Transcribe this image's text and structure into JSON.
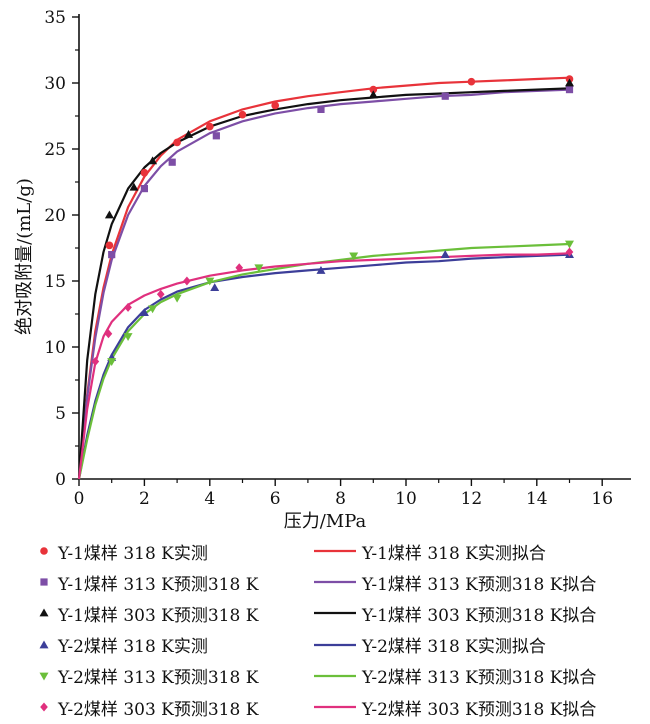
{
  "chart_data": {
    "type": "scatter",
    "xlabel": "压力/MPa",
    "ylabel": "绝对吸附量/(mL/g)",
    "xlim": [
      0,
      16
    ],
    "ylim": [
      0,
      35
    ],
    "xticks": [
      "0",
      "2",
      "4",
      "6",
      "8",
      "10",
      "12",
      "14",
      "16"
    ],
    "yticks": [
      "0",
      "5",
      "10",
      "15",
      "20",
      "25",
      "30",
      "35"
    ],
    "grid": false,
    "legend_position": "bottom",
    "series": [
      {
        "name": "Y-1煤样 318 K实测",
        "kind": "points",
        "marker": "circle",
        "color": "#e8333a",
        "x": [
          0.93,
          2.0,
          3.0,
          4.0,
          5.0,
          6.0,
          9.0,
          12.0,
          15.0
        ],
        "y": [
          17.7,
          23.2,
          25.5,
          26.7,
          27.6,
          28.3,
          29.5,
          30.1,
          30.3
        ]
      },
      {
        "name": "Y-1煤样 313 K预测318 K",
        "kind": "points",
        "marker": "square",
        "color": "#7d4ea6",
        "x": [
          1.0,
          2.0,
          2.85,
          4.2,
          7.4,
          11.2,
          15.0
        ],
        "y": [
          17.0,
          22.0,
          24.0,
          26.0,
          28.0,
          29.0,
          29.5
        ]
      },
      {
        "name": "Y-1煤样 303 K预测318 K",
        "kind": "points",
        "marker": "triangle-up",
        "color": "#111111",
        "x": [
          0.93,
          1.68,
          2.25,
          3.35,
          9.0,
          15.0
        ],
        "y": [
          20.0,
          22.1,
          24.1,
          26.1,
          29.1,
          30.0
        ]
      },
      {
        "name": "Y-2煤样 318 K实测",
        "kind": "points",
        "marker": "triangle-up",
        "color": "#3c3e99",
        "x": [
          1.0,
          2.0,
          4.15,
          7.4,
          11.2,
          15.0
        ],
        "y": [
          9.2,
          12.6,
          14.5,
          15.8,
          17.0,
          17.0
        ]
      },
      {
        "name": "Y-2煤样 313 K预测318 K",
        "kind": "points",
        "marker": "triangle-down",
        "color": "#6bbf3a",
        "x": [
          1.0,
          1.5,
          2.25,
          3.0,
          4.0,
          5.5,
          8.4,
          15.0
        ],
        "y": [
          8.9,
          10.8,
          12.9,
          13.7,
          15.0,
          16.0,
          16.9,
          17.8
        ]
      },
      {
        "name": "Y-2煤样 303 K预测318 K",
        "kind": "points",
        "marker": "diamond",
        "color": "#e0307e",
        "x": [
          0.5,
          0.9,
          1.5,
          2.5,
          3.3,
          4.9,
          15.0
        ],
        "y": [
          8.9,
          11.0,
          13.0,
          14.0,
          15.0,
          16.0,
          17.2
        ]
      },
      {
        "name": "Y-1煤样 318 K实测拟合",
        "kind": "line",
        "color": "#e8333a",
        "x": [
          0,
          0.25,
          0.5,
          0.75,
          1.0,
          1.5,
          2.0,
          2.5,
          3.0,
          4.0,
          5.0,
          6.0,
          7.0,
          8.0,
          9.0,
          10.0,
          11.0,
          12.0,
          13.0,
          14.0,
          15.0
        ],
        "y": [
          0,
          6.4,
          11.2,
          14.5,
          17.0,
          20.6,
          22.9,
          24.5,
          25.7,
          27.1,
          28.0,
          28.6,
          29.0,
          29.3,
          29.6,
          29.8,
          30.0,
          30.1,
          30.2,
          30.3,
          30.4
        ]
      },
      {
        "name": "Y-1煤样 313 K预测318 K拟合",
        "kind": "line",
        "color": "#7d4ea6",
        "x": [
          0,
          0.25,
          0.5,
          0.75,
          1.0,
          1.5,
          2.0,
          2.5,
          3.0,
          4.0,
          5.0,
          6.0,
          7.0,
          8.0,
          9.0,
          10.0,
          11.0,
          12.0,
          13.0,
          14.0,
          15.0
        ],
        "y": [
          0,
          6.2,
          10.7,
          14.1,
          16.6,
          20.0,
          22.2,
          23.7,
          24.8,
          26.2,
          27.1,
          27.7,
          28.1,
          28.4,
          28.6,
          28.8,
          29.0,
          29.1,
          29.3,
          29.4,
          29.5
        ]
      },
      {
        "name": "Y-1煤样 303 K预测318 K拟合",
        "kind": "line",
        "color": "#111111",
        "x": [
          0,
          0.25,
          0.5,
          0.75,
          1.0,
          1.5,
          2.0,
          2.5,
          3.0,
          4.0,
          5.0,
          6.0,
          7.0,
          8.0,
          9.0,
          10.0,
          11.0,
          12.0,
          13.0,
          14.0,
          15.0
        ],
        "y": [
          0,
          9.0,
          14.0,
          17.2,
          19.3,
          22.0,
          23.6,
          24.7,
          25.5,
          26.7,
          27.5,
          28.0,
          28.4,
          28.7,
          28.9,
          29.1,
          29.2,
          29.3,
          29.4,
          29.5,
          29.6
        ]
      },
      {
        "name": "Y-2煤样 318 K实测拟合",
        "kind": "line",
        "color": "#3c3e99",
        "x": [
          0,
          0.25,
          0.5,
          0.75,
          1.0,
          1.5,
          2.0,
          2.5,
          3.0,
          4.0,
          5.0,
          6.0,
          7.0,
          8.0,
          9.0,
          10.0,
          11.0,
          12.0,
          13.0,
          14.0,
          15.0
        ],
        "y": [
          0,
          3.3,
          5.9,
          7.9,
          9.4,
          11.5,
          12.8,
          13.6,
          14.2,
          14.9,
          15.3,
          15.6,
          15.8,
          16.0,
          16.2,
          16.4,
          16.5,
          16.7,
          16.8,
          16.9,
          17.0
        ]
      },
      {
        "name": "Y-2煤样 313 K预测318 K拟合",
        "kind": "line",
        "color": "#6bbf3a",
        "x": [
          0,
          0.25,
          0.5,
          0.75,
          1.0,
          1.5,
          2.0,
          2.5,
          3.0,
          4.0,
          5.0,
          6.0,
          7.0,
          8.0,
          9.0,
          10.0,
          11.0,
          12.0,
          13.0,
          14.0,
          15.0
        ],
        "y": [
          0,
          3.0,
          5.6,
          7.6,
          9.1,
          11.2,
          12.5,
          13.4,
          14.0,
          14.9,
          15.5,
          15.9,
          16.3,
          16.6,
          16.9,
          17.1,
          17.3,
          17.5,
          17.6,
          17.7,
          17.8
        ]
      },
      {
        "name": "Y-2煤样 303 K预测318 K拟合",
        "kind": "line",
        "color": "#e0307e",
        "x": [
          0,
          0.25,
          0.5,
          0.75,
          1.0,
          1.5,
          2.0,
          2.5,
          3.0,
          4.0,
          5.0,
          6.0,
          7.0,
          8.0,
          9.0,
          10.0,
          11.0,
          12.0,
          13.0,
          14.0,
          15.0
        ],
        "y": [
          0,
          5.3,
          8.8,
          10.8,
          11.9,
          13.2,
          13.9,
          14.4,
          14.8,
          15.4,
          15.8,
          16.1,
          16.3,
          16.5,
          16.6,
          16.7,
          16.8,
          16.9,
          17.0,
          17.0,
          17.1
        ]
      }
    ]
  }
}
